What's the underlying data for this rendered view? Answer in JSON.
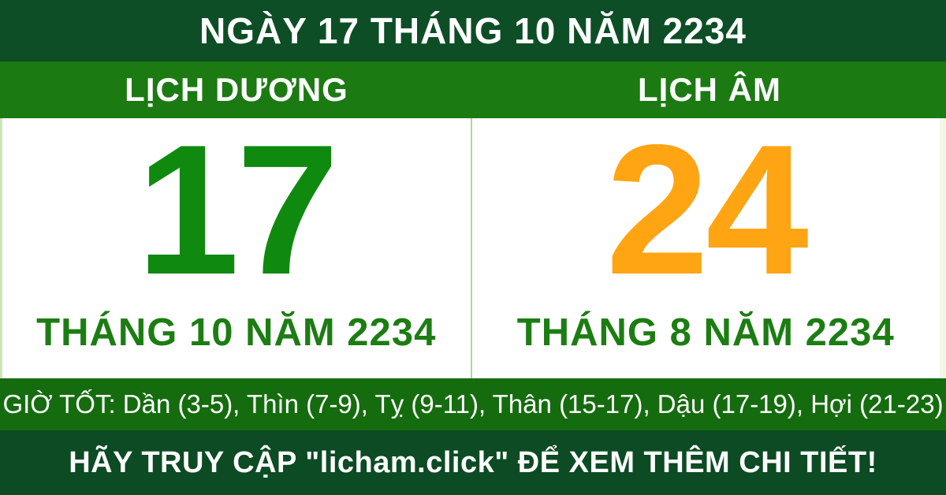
{
  "colors": {
    "header_bg": "#0d4e26",
    "tabs_bg": "#1b7a12",
    "content_bg": "#ffffff",
    "good_hours_bg": "#156c0e",
    "footer_bg": "#0c4b23",
    "solar_number": "#0f8a0f",
    "lunar_number": "#ffa412",
    "month_text": "#1c7d12",
    "divider": "#aed896",
    "white": "#ffffff"
  },
  "header": {
    "title": "NGÀY 17 THÁNG 10 NĂM 2234"
  },
  "calendar": {
    "solar": {
      "tab_label": "LỊCH DƯƠNG",
      "day": "17",
      "month_year": "THÁNG 10 NĂM 2234"
    },
    "lunar": {
      "tab_label": "LỊCH ÂM",
      "day": "24",
      "month_year": "THÁNG 8 NĂM 2234"
    }
  },
  "good_hours": {
    "text": "GIỜ TỐT: Dần (3-5), Thìn (7-9), Tỵ (9-11), Thân (15-17), Dậu (17-19), Hợi (21-23)"
  },
  "footer": {
    "text": "HÃY TRUY CẬP \"licham.click\" ĐỂ XEM THÊM CHI TIẾT!"
  }
}
